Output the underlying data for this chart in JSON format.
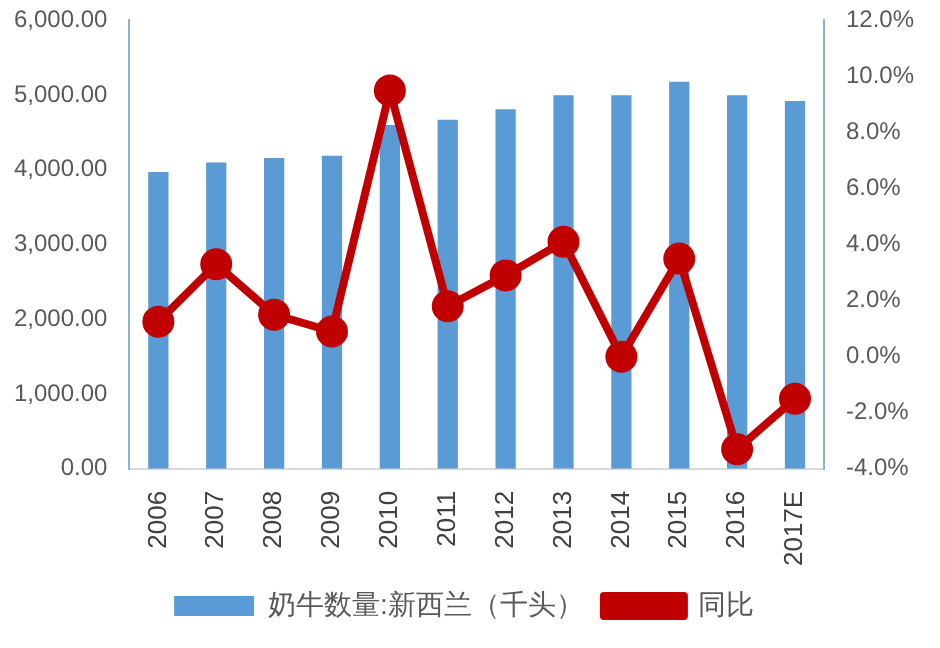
{
  "chart_data": {
    "type": "bar",
    "categories": [
      "2006",
      "2007",
      "2008",
      "2009",
      "2010",
      "2011",
      "2012",
      "2013",
      "2014",
      "2015",
      "2016",
      "2017E"
    ],
    "series": [
      {
        "name": "奶牛数量:新西兰（千头）",
        "color": "#5b9bd5",
        "values": [
          3970,
          4100,
          4160,
          4190,
          4600,
          4670,
          4810,
          5000,
          5000,
          5180,
          5000,
          4920
        ]
      },
      {
        "name": "同比",
        "type": "line",
        "axis": "y2",
        "color": "#c00000",
        "marker": "circle",
        "values": [
          1.25,
          3.3,
          1.5,
          0.9,
          9.5,
          1.8,
          2.9,
          4.1,
          0,
          3.5,
          -3.3,
          -1.5
        ]
      }
    ],
    "ylim": [
      0,
      6000
    ],
    "yticks": [
      {
        "value": 0,
        "label": "0.00"
      },
      {
        "value": 1000,
        "label": "1,000.00"
      },
      {
        "value": 2000,
        "label": "2,000.00"
      },
      {
        "value": 3000,
        "label": "3,000.00"
      },
      {
        "value": 4000,
        "label": "4,000.00"
      },
      {
        "value": 5000,
        "label": "5,000.00"
      },
      {
        "value": 6000,
        "label": "6,000.00"
      }
    ],
    "y2lim": [
      -4,
      12
    ],
    "y2ticks": [
      {
        "value": -4,
        "label": "-4.0%"
      },
      {
        "value": -2,
        "label": "-2.0%"
      },
      {
        "value": 0,
        "label": "0.0%"
      },
      {
        "value": 2,
        "label": "2.0%"
      },
      {
        "value": 4,
        "label": "4.0%"
      },
      {
        "value": 6,
        "label": "6.0%"
      },
      {
        "value": 8,
        "label": "8.0%"
      },
      {
        "value": 10,
        "label": "10.0%"
      },
      {
        "value": 12,
        "label": "12.0%"
      }
    ],
    "grid": false,
    "legend": "bottom"
  }
}
